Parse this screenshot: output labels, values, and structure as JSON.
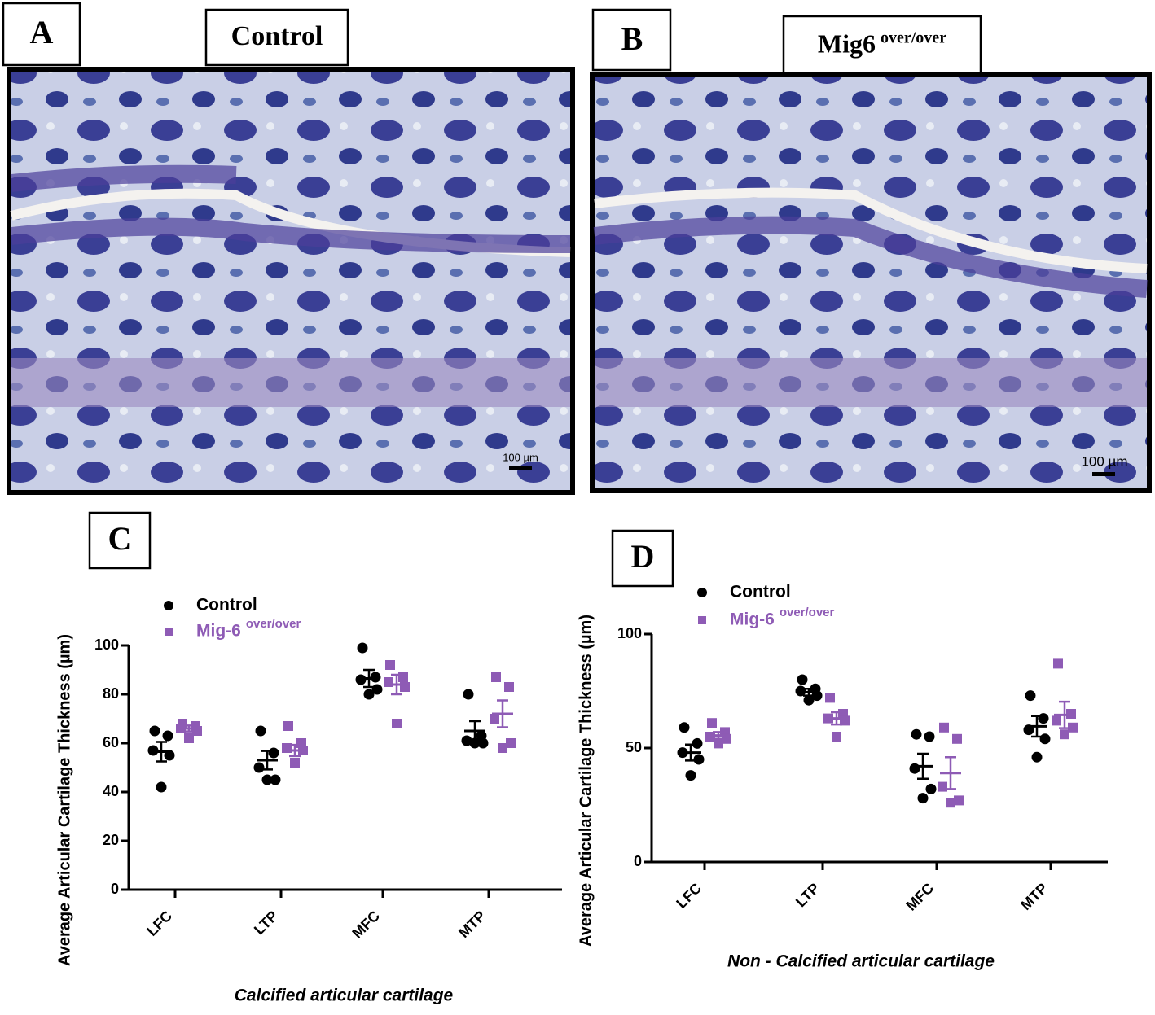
{
  "panels": [
    {
      "label": "A",
      "title": "Control",
      "scale_bar": "100 µm"
    },
    {
      "label": "B",
      "title": "Mig6",
      "title_sup": "over/over",
      "scale_bar": "100 µm"
    }
  ],
  "chart_data": [
    {
      "type": "dot",
      "label": "C",
      "ylabel": "Average Articular Cartilage Thickness (µm)",
      "xlabel": "Calcified articular cartilage",
      "categories": [
        "LFC",
        "LTP",
        "MFC",
        "MTP"
      ],
      "ylim": [
        0,
        100
      ],
      "yticks": [
        0,
        20,
        40,
        60,
        80,
        100
      ],
      "series": [
        {
          "name": "Control",
          "color": "#000000",
          "marker": "circle",
          "points": [
            [
              65,
              63,
              57,
              55,
              42
            ],
            [
              65,
              56,
              50,
              45,
              45
            ],
            [
              99,
              87,
              86,
              82,
              80
            ],
            [
              80,
              63,
              61,
              60,
              60
            ]
          ],
          "mean": [
            56.5,
            53,
            86.5,
            65
          ],
          "sem": [
            4,
            3.8,
            3.5,
            4
          ]
        },
        {
          "name": "Mig-6",
          "name_sup": "over/over",
          "color": "#8e5bb5",
          "marker": "square",
          "points": [
            [
              68,
              67,
              66,
              65,
              62
            ],
            [
              67,
              60,
              58,
              57,
              52
            ],
            [
              92,
              87,
              85,
              83,
              68
            ],
            [
              87,
              83,
              70,
              60,
              58
            ]
          ],
          "mean": [
            66,
            57,
            84,
            72
          ],
          "sem": [
            1.2,
            2.3,
            4,
            5.5
          ]
        }
      ]
    },
    {
      "type": "dot",
      "label": "D",
      "ylabel": "Average Articular Cartilage Thickness (µm)",
      "xlabel": "Non - Calcified articular cartilage",
      "categories": [
        "LFC",
        "LTP",
        "MFC",
        "MTP"
      ],
      "ylim": [
        0,
        100
      ],
      "yticks": [
        0,
        50,
        100
      ],
      "series": [
        {
          "name": "Control",
          "color": "#000000",
          "marker": "circle",
          "points": [
            [
              59,
              52,
              48,
              45,
              38
            ],
            [
              80,
              76,
              75,
              73,
              71
            ],
            [
              56,
              55,
              41,
              32,
              28
            ],
            [
              73,
              63,
              58,
              54,
              46
            ]
          ],
          "mean": [
            48,
            74.5,
            42,
            59.5
          ],
          "sem": [
            3.5,
            1.5,
            5.5,
            4.5
          ]
        },
        {
          "name": "Mig-6",
          "name_sup": "over/over",
          "color": "#8e5bb5",
          "marker": "square",
          "points": [
            [
              61,
              57,
              55,
              54,
              52
            ],
            [
              72,
              65,
              63,
              62,
              55
            ],
            [
              59,
              54,
              33,
              27,
              26
            ],
            [
              87,
              65,
              62,
              59,
              56
            ]
          ],
          "mean": [
            55.5,
            63,
            39,
            64.5
          ],
          "sem": [
            1.5,
            2.7,
            7,
            5.8
          ]
        }
      ]
    }
  ]
}
